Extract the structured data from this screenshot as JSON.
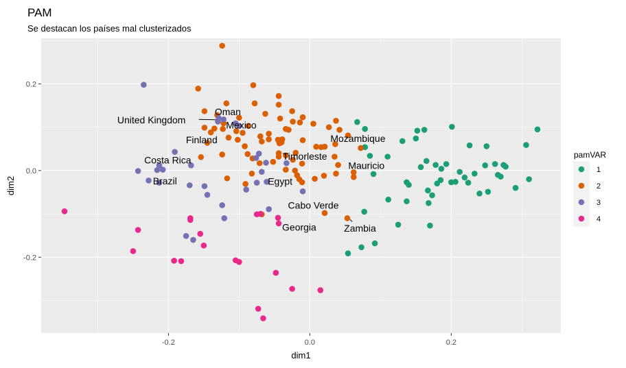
{
  "chart_data": {
    "type": "scatter",
    "title": "PAM",
    "subtitle": "Se destacan los países mal clusterizados",
    "xlabel": "dim1",
    "ylabel": "dim2",
    "xlim": [
      -0.38,
      0.355
    ],
    "ylim": [
      -0.375,
      0.305
    ],
    "x_ticks": [
      -0.2,
      0.0,
      0.2
    ],
    "y_ticks": [
      -0.2,
      0.0,
      0.2
    ],
    "x_tick_labels": [
      "-0.2",
      "0.0",
      "0.2"
    ],
    "y_tick_labels": [
      "-0.2",
      "0.0",
      "0.2"
    ],
    "grid": true,
    "legend": {
      "title": "pamVAR",
      "position": "right",
      "entries": [
        {
          "label": "1",
          "color": "#1b9e77"
        },
        {
          "label": "2",
          "color": "#d95f02"
        },
        {
          "label": "3",
          "color": "#7570b3"
        },
        {
          "label": "4",
          "color": "#e7298a"
        }
      ]
    },
    "series": [
      {
        "name": "1",
        "color": "#1b9e77",
        "points": [
          [
            0.067,
            0.112
          ],
          [
            0.078,
            0.096
          ],
          [
            0.078,
            0.054
          ],
          [
            0.085,
            0.034
          ],
          [
            0.11,
            0.032
          ],
          [
            0.131,
            0.068
          ],
          [
            0.15,
            0.074
          ],
          [
            0.152,
            0.092
          ],
          [
            0.162,
            0.094
          ],
          [
            0.165,
            0.022
          ],
          [
            0.201,
            0.101
          ],
          [
            0.226,
            0.058
          ],
          [
            0.25,
            0.056
          ],
          [
            0.306,
            0.059
          ],
          [
            0.322,
            0.095
          ],
          [
            0.178,
            0.013
          ],
          [
            0.193,
            0.015
          ],
          [
            0.186,
            0.004
          ],
          [
            0.157,
            0.008
          ],
          [
            0.212,
            -0.003
          ],
          [
            0.224,
            -0.028
          ],
          [
            0.233,
            -0.007
          ],
          [
            0.248,
            0.012
          ],
          [
            0.262,
            0.015
          ],
          [
            0.274,
            0.013
          ],
          [
            0.277,
            0.009
          ],
          [
            0.266,
            -0.01
          ],
          [
            0.27,
            -0.014
          ],
          [
            0.291,
            -0.04
          ],
          [
            0.31,
            -0.02
          ],
          [
            0.24,
            -0.053
          ],
          [
            0.252,
            -0.049
          ],
          [
            0.2,
            -0.027
          ],
          [
            0.206,
            -0.026
          ],
          [
            0.219,
            -0.016
          ],
          [
            0.185,
            -0.022
          ],
          [
            0.18,
            -0.03
          ],
          [
            0.167,
            -0.046
          ],
          [
            0.173,
            -0.057
          ],
          [
            0.168,
            -0.075
          ],
          [
            0.17,
            -0.127
          ],
          [
            0.14,
            -0.033
          ],
          [
            0.137,
            -0.027
          ],
          [
            0.09,
            -0.008
          ],
          [
            0.111,
            -0.067
          ],
          [
            0.137,
            -0.071
          ],
          [
            0.125,
            -0.125
          ],
          [
            0.077,
            -0.095
          ],
          [
            0.054,
            -0.191
          ],
          [
            0.073,
            -0.177
          ],
          [
            0.092,
            -0.168
          ]
        ]
      },
      {
        "name": "2",
        "color": "#d95f02",
        "points": [
          [
            -0.124,
            0.288
          ],
          [
            -0.158,
            0.189
          ],
          [
            -0.08,
            0.197
          ],
          [
            -0.044,
            0.172
          ],
          [
            -0.078,
            0.155
          ],
          [
            -0.044,
            0.152
          ],
          [
            -0.149,
            0.137
          ],
          [
            -0.118,
            0.155
          ],
          [
            -0.131,
            0.128
          ],
          [
            -0.1,
            0.122
          ],
          [
            -0.063,
            0.131
          ],
          [
            -0.042,
            0.12
          ],
          [
            -0.025,
            0.137
          ],
          [
            -0.01,
            0.123
          ],
          [
            -0.014,
            0.111
          ],
          [
            -0.024,
            0.113
          ],
          [
            -0.034,
            0.096
          ],
          [
            -0.03,
            0.094
          ],
          [
            0.005,
            0.108
          ],
          [
            0.037,
            0.115
          ],
          [
            0.042,
            0.094
          ],
          [
            0.027,
            0.1
          ],
          [
            0.054,
            0.081
          ],
          [
            0.072,
            0.052
          ],
          [
            -0.149,
            0.099
          ],
          [
            -0.14,
            0.088
          ],
          [
            -0.122,
            0.109
          ],
          [
            -0.135,
            0.097
          ],
          [
            -0.123,
            0.096
          ],
          [
            -0.087,
            0.103
          ],
          [
            -0.058,
            0.085
          ],
          [
            -0.058,
            0.072
          ],
          [
            -0.095,
            0.087
          ],
          [
            -0.07,
            0.079
          ],
          [
            -0.068,
            0.067
          ],
          [
            -0.045,
            0.071
          ],
          [
            -0.039,
            0.072
          ],
          [
            -0.043,
            0.063
          ],
          [
            -0.104,
            0.091
          ],
          [
            -0.115,
            0.076
          ],
          [
            -0.145,
            0.064
          ],
          [
            -0.102,
            0.071
          ],
          [
            -0.092,
            0.056
          ],
          [
            -0.088,
            0.038
          ],
          [
            -0.081,
            0.028
          ],
          [
            -0.071,
            0.017
          ],
          [
            -0.154,
            0.031
          ],
          [
            -0.124,
            0.037
          ],
          [
            -0.04,
            0.065
          ],
          [
            -0.034,
            0.035
          ],
          [
            -0.044,
            0.04
          ],
          [
            -0.02,
            0.041
          ],
          [
            -0.01,
            0.07
          ],
          [
            0.009,
            0.055
          ],
          [
            0.016,
            0.054
          ],
          [
            0.021,
            0.055
          ],
          [
            0.036,
            0.061
          ],
          [
            0.035,
            0.032
          ],
          [
            0.04,
            0.013
          ],
          [
            -0.044,
            0.032
          ],
          [
            -0.024,
            0.025
          ],
          [
            -0.011,
            0.016
          ],
          [
            -0.052,
            0.02
          ],
          [
            -0.034,
            0.002
          ],
          [
            -0.021,
            0.0
          ],
          [
            -0.018,
            -0.011
          ],
          [
            0.007,
            -0.019
          ],
          [
            0.037,
            -0.007
          ],
          [
            0.062,
            -0.004
          ],
          [
            0.02,
            -0.012
          ],
          [
            -0.015,
            -0.02
          ],
          [
            -0.011,
            -0.027
          ],
          [
            -0.082,
            -0.007
          ],
          [
            -0.117,
            -0.018
          ],
          [
            -0.091,
            -0.031
          ],
          [
            -0.068,
            -0.101
          ],
          [
            0.021,
            -0.098
          ],
          [
            0.053,
            -0.11
          ],
          [
            0.062,
            -0.015
          ]
        ]
      },
      {
        "name": "3",
        "color": "#7570b3",
        "points": [
          [
            -0.235,
            0.198
          ],
          [
            -0.105,
            0.109
          ],
          [
            -0.1,
            0.103
          ],
          [
            -0.129,
            0.121
          ],
          [
            -0.122,
            0.118
          ],
          [
            -0.13,
            0.113
          ],
          [
            -0.191,
            0.043
          ],
          [
            -0.168,
            0.012
          ],
          [
            -0.213,
            0.012
          ],
          [
            -0.208,
            0.002
          ],
          [
            -0.216,
            0.001
          ],
          [
            -0.243,
            -0.001
          ],
          [
            -0.228,
            -0.023
          ],
          [
            -0.213,
            -0.028
          ],
          [
            -0.17,
            -0.034
          ],
          [
            -0.149,
            -0.036
          ],
          [
            -0.145,
            -0.056
          ],
          [
            -0.124,
            -0.08
          ],
          [
            -0.121,
            -0.11
          ],
          [
            -0.09,
            -0.044
          ],
          [
            -0.075,
            -0.028
          ],
          [
            -0.061,
            -0.026
          ],
          [
            -0.068,
            -0.003
          ],
          [
            -0.076,
            0.029
          ],
          [
            -0.072,
            0.039
          ],
          [
            -0.062,
            0.018
          ],
          [
            -0.033,
            0.017
          ],
          [
            -0.058,
            -0.089
          ],
          [
            -0.01,
            -0.048
          ],
          [
            -0.175,
            -0.151
          ],
          [
            -0.165,
            -0.16
          ]
        ]
      },
      {
        "name": "4",
        "color": "#e7298a",
        "points": [
          [
            -0.347,
            -0.094
          ],
          [
            -0.243,
            -0.137
          ],
          [
            -0.25,
            -0.186
          ],
          [
            -0.169,
            -0.11
          ],
          [
            -0.169,
            -0.114
          ],
          [
            -0.155,
            -0.146
          ],
          [
            -0.15,
            -0.173
          ],
          [
            -0.182,
            -0.209
          ],
          [
            -0.192,
            -0.208
          ],
          [
            -0.105,
            -0.207
          ],
          [
            -0.1,
            -0.211
          ],
          [
            -0.075,
            -0.101
          ],
          [
            -0.07,
            -0.1
          ],
          [
            -0.045,
            -0.109
          ],
          [
            -0.044,
            -0.122
          ],
          [
            -0.048,
            -0.236
          ],
          [
            -0.025,
            -0.273
          ],
          [
            0.015,
            -0.276
          ],
          [
            -0.073,
            -0.319
          ],
          [
            -0.066,
            -0.341
          ]
        ]
      }
    ],
    "annotations": [
      {
        "label": "Oman",
        "x": -0.116,
        "y": 0.136
      },
      {
        "label": "United Kingdom",
        "x": -0.224,
        "y": 0.117
      },
      {
        "label": "Mexico",
        "x": -0.097,
        "y": 0.105
      },
      {
        "label": "Finland",
        "x": -0.153,
        "y": 0.071
      },
      {
        "label": "Mozambique",
        "x": 0.068,
        "y": 0.074
      },
      {
        "label": "Timorleste",
        "x": -0.007,
        "y": 0.033
      },
      {
        "label": "Costa Rica",
        "x": -0.201,
        "y": 0.024
      },
      {
        "label": "Mauricio",
        "x": 0.08,
        "y": 0.012
      },
      {
        "label": "Brazil",
        "x": -0.205,
        "y": -0.024
      },
      {
        "label": "Egypt",
        "x": -0.042,
        "y": -0.025
      },
      {
        "label": "Cabo Verde",
        "x": 0.005,
        "y": -0.08
      },
      {
        "label": "Georgia",
        "x": -0.015,
        "y": -0.131
      },
      {
        "label": "Zambia",
        "x": 0.071,
        "y": -0.133
      }
    ],
    "leaders": [
      {
        "from": [
          -0.157,
          0.118
        ],
        "to": [
          -0.128,
          0.117
        ]
      },
      {
        "from": [
          -0.21,
          0.003
        ],
        "to": [
          -0.206,
          -0.004
        ]
      },
      {
        "from": [
          0.057,
          -0.113
        ],
        "to": [
          0.06,
          -0.118
        ]
      },
      {
        "from": [
          0.021,
          -0.097
        ],
        "to": [
          0.019,
          -0.094
        ]
      }
    ]
  }
}
